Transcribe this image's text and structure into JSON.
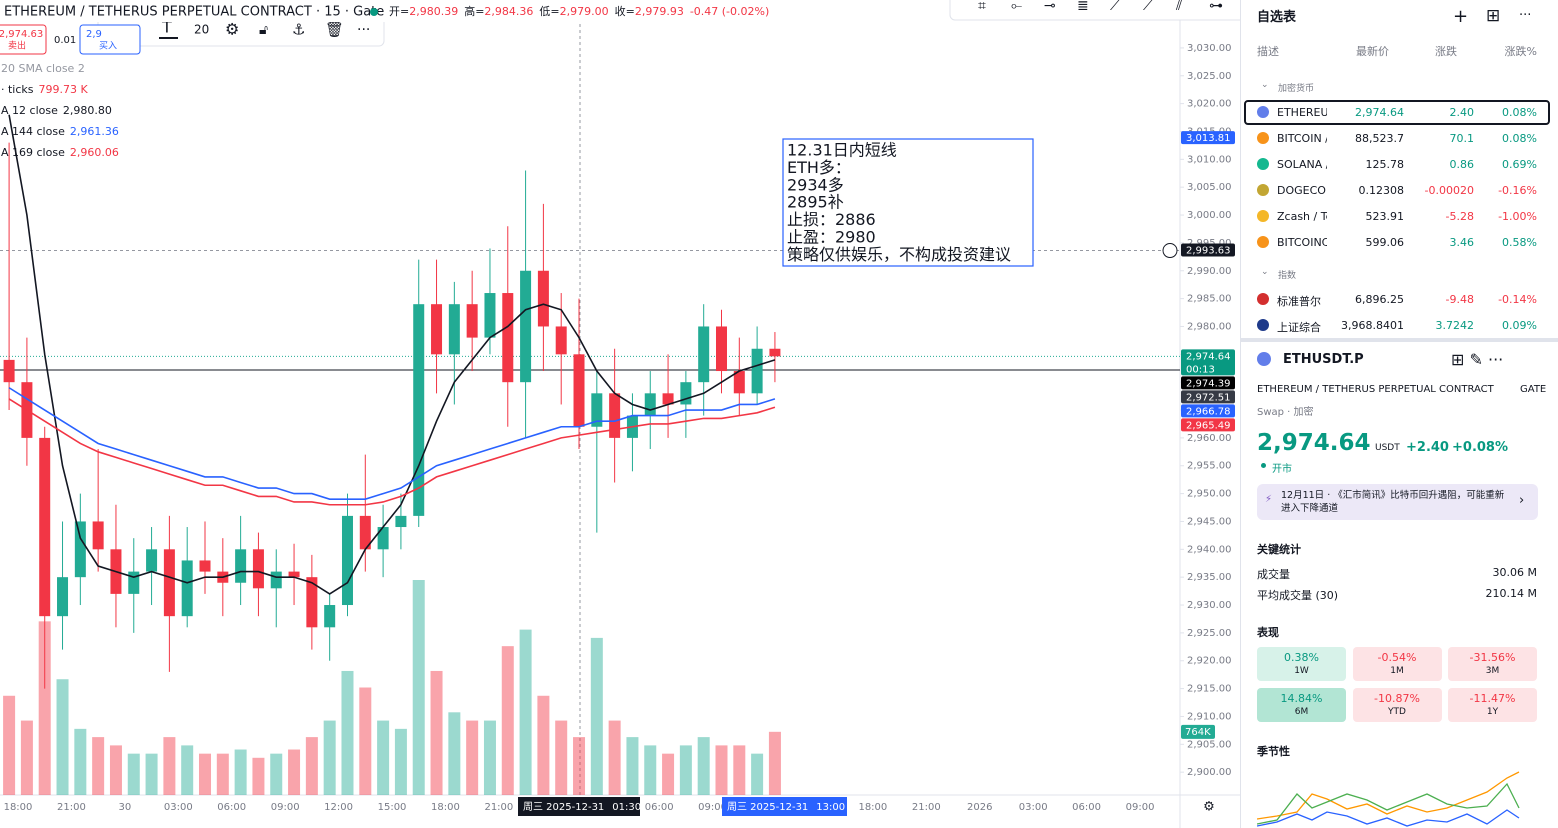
{
  "chart_data": {
    "type": "candlestick",
    "header": {
      "symbol": "ETHEREUM / TETHERUS PERPETUAL CONTRACT · 15 · Gate",
      "ohlc": [
        {
          "label": "开=",
          "value": "2,980.39"
        },
        {
          "label": "高=",
          "value": "2,984.36"
        },
        {
          "label": "低=",
          "value": "2,979.00"
        },
        {
          "label": "收=",
          "value": "2,979.93"
        }
      ],
      "change": "-0.47 (-0.02%)"
    },
    "trade": {
      "sell_price": "2,974.63",
      "sell": "卖出",
      "qty": "0.01",
      "buy_price": "2,9",
      "buy": "买入"
    },
    "toolbar_size": "20",
    "indicators": [
      {
        "name": "20 SMA close 2",
        "value": null
      },
      {
        "name": "· ticks",
        "value": "799.73 K",
        "color": "#f23645"
      },
      {
        "name": "A 12 close",
        "value": "2,980.80",
        "color": "#131722"
      },
      {
        "name": "A 144 close",
        "value": "2,961.36",
        "color": "#2962ff"
      },
      {
        "name": "A 169 close",
        "value": "2,960.06",
        "color": "#f23645"
      }
    ],
    "annotation": [
      "12.31日内短线",
      "ETH多：",
      "2934多",
      "2895补",
      "止损：2886",
      "止盈：2980",
      "策略仅供娱乐，不构成投资建议"
    ],
    "open": [
      2974,
      2970,
      2960,
      2928,
      2935,
      2945,
      2940,
      2932,
      2936,
      2940,
      2928,
      2938,
      2936,
      2934,
      2940,
      2933,
      2936,
      2935,
      2926,
      2930,
      2946,
      2940,
      2944,
      2946,
      2984,
      2975,
      2984,
      2978,
      2986,
      2970,
      2990,
      2980,
      2975,
      2962,
      2968,
      2960,
      2964,
      2968,
      2966,
      2970,
      2980,
      2972,
      2968,
      2976
    ],
    "high": [
      3013,
      2978,
      2962,
      2945,
      2950,
      2958,
      2948,
      2942,
      2944,
      2946,
      2944,
      2945,
      2942,
      2946,
      2943,
      2940,
      2941,
      2939,
      2932,
      2950,
      2957,
      2948,
      2950,
      2992,
      2992,
      2988,
      2990,
      2994,
      2998,
      3008,
      3002,
      2986,
      2985,
      2972,
      2976,
      2968,
      2972,
      2975,
      2972,
      2984,
      2983,
      2978,
      2980,
      2979
    ],
    "low": [
      2965,
      2955,
      2915,
      2922,
      2930,
      2936,
      2926,
      2925,
      2930,
      2918,
      2926,
      2932,
      2928,
      2930,
      2928,
      2926,
      2930,
      2922,
      2920,
      2928,
      2936,
      2935,
      2940,
      2944,
      2968,
      2966,
      2972,
      2975,
      2962,
      2960,
      2972,
      2966,
      2958,
      2943,
      2952,
      2954,
      2958,
      2960,
      2960,
      2964,
      2968,
      2964,
      2966,
      2970
    ],
    "close": [
      2970,
      2960,
      2928,
      2935,
      2945,
      2940,
      2932,
      2936,
      2940,
      2928,
      2938,
      2936,
      2934,
      2940,
      2933,
      2936,
      2935,
      2926,
      2930,
      2946,
      2940,
      2944,
      2946,
      2984,
      2975,
      2984,
      2978,
      2986,
      2970,
      2990,
      2980,
      2975,
      2962,
      2968,
      2960,
      2964,
      2968,
      2966,
      2970,
      2980,
      2972,
      2968,
      2976,
      2974.64
    ],
    "volume": [
      1200,
      900,
      2100,
      1400,
      800,
      700,
      600,
      500,
      500,
      700,
      600,
      500,
      500,
      550,
      450,
      500,
      550,
      700,
      900,
      1500,
      1300,
      900,
      800,
      2600,
      1500,
      1000,
      900,
      900,
      1800,
      2000,
      1200,
      900,
      700,
      1900,
      900,
      700,
      600,
      500,
      600,
      700,
      600,
      600,
      500,
      764
    ],
    "volume_label": "764K",
    "series": [
      {
        "name": "12 close",
        "color": "#131722",
        "values": [
          3018,
          3000,
          2975,
          2955,
          2942,
          2937,
          2936,
          2935,
          2936,
          2935,
          2934,
          2935,
          2935,
          2936,
          2936,
          2935,
          2935,
          2934,
          2932,
          2934,
          2940,
          2944,
          2948,
          2955,
          2963,
          2970,
          2974,
          2978,
          2980,
          2983,
          2984,
          2983,
          2978,
          2972,
          2968,
          2966,
          2965,
          2966,
          2967,
          2968,
          2970,
          2972,
          2973,
          2974
        ]
      },
      {
        "name": "144 close",
        "color": "#2962ff",
        "values": [
          2969,
          2967,
          2965,
          2963,
          2961,
          2959,
          2958,
          2957,
          2956,
          2955,
          2954,
          2953,
          2953,
          2952,
          2951,
          2951,
          2950,
          2950,
          2949,
          2949,
          2949,
          2950,
          2951,
          2953,
          2955,
          2956,
          2957,
          2958,
          2959,
          2960,
          2961,
          2962,
          2962,
          2963,
          2963,
          2964,
          2964,
          2964,
          2965,
          2965,
          2965,
          2966,
          2966,
          2967
        ]
      },
      {
        "name": "169 close",
        "color": "#f23645",
        "values": [
          2967,
          2965,
          2963,
          2961,
          2959,
          2957.5,
          2956.5,
          2955.5,
          2954.5,
          2953.5,
          2952.5,
          2951.5,
          2951.5,
          2950.5,
          2949.5,
          2949.5,
          2948.5,
          2948.5,
          2948,
          2948,
          2948,
          2948.5,
          2949.5,
          2951,
          2953,
          2954,
          2955,
          2956,
          2957,
          2958,
          2959,
          2960,
          2960.5,
          2961,
          2961.5,
          2962,
          2962.5,
          2962.5,
          2963,
          2963.5,
          2963.5,
          2964,
          2964.5,
          2965.5
        ]
      }
    ],
    "up_color": "#22ab94",
    "down_color": "#f23645",
    "ylim": [
      2895.9,
      3038.6
    ],
    "yticks": [
      {
        "value": 2900,
        "label": "2,900.00"
      },
      {
        "value": 2905,
        "label": "2,905.00"
      },
      {
        "value": 2910,
        "label": "2,910.00"
      },
      {
        "value": 2915,
        "label": "2,915.00"
      },
      {
        "value": 2920,
        "label": "2,920.00"
      },
      {
        "value": 2925,
        "label": "2,925.00"
      },
      {
        "value": 2930,
        "label": "2,930.00"
      },
      {
        "value": 2935,
        "label": "2,935.00"
      },
      {
        "value": 2940,
        "label": "2,940.00"
      },
      {
        "value": 2945,
        "label": "2,945.00"
      },
      {
        "value": 2950,
        "label": "2,950.00"
      },
      {
        "value": 2955,
        "label": "2,955.00"
      },
      {
        "value": 2960,
        "label": "2,960.00"
      },
      {
        "value": 2965,
        "label": "2,965.00"
      },
      {
        "value": 2970,
        "label": "2,970.00"
      },
      {
        "value": 2975,
        "label": "2,975.00"
      },
      {
        "value": 2980,
        "label": "2,980.00"
      },
      {
        "value": 2985,
        "label": "2,985.00"
      },
      {
        "value": 2990,
        "label": "2,990.00"
      },
      {
        "value": 2995,
        "label": "2,995.00"
      },
      {
        "value": 3000,
        "label": "3,000.00"
      },
      {
        "value": 3005,
        "label": "3,005.00"
      },
      {
        "value": 3010,
        "label": "3,010.00"
      },
      {
        "value": 3015,
        "label": "3,015.00"
      },
      {
        "value": 3020,
        "label": "3,020.00"
      },
      {
        "value": 3025,
        "label": "3,025.00"
      },
      {
        "value": 3030,
        "label": "3,030.00"
      }
    ],
    "grid": false,
    "price_labels": [
      {
        "value": 3013.81,
        "label": "3,013.81",
        "color": "#2962ff"
      },
      {
        "value": 2993.63,
        "label": "2,993.63",
        "color": "#131722"
      },
      {
        "value": 2974.64,
        "label": "2,974.64",
        "sub": "00:13",
        "color": "#089981"
      },
      {
        "value": 2974.39,
        "label": "2,974.39",
        "color": "#000000"
      },
      {
        "value": 2972.51,
        "label": "2,972.51",
        "color": "#363a45"
      },
      {
        "value": 2966.78,
        "label": "2,966.78",
        "color": "#2962ff"
      },
      {
        "value": 2965.49,
        "label": "2,965.49",
        "color": "#f23645"
      }
    ],
    "time_labels": [
      "18:00",
      "21:00",
      "30",
      "03:00",
      "06:00",
      "09:00",
      "12:00",
      "15:00",
      "18:00",
      "21:00",
      null,
      null,
      "06:00",
      "09:00",
      null,
      null,
      "18:00",
      "21:00",
      "2026",
      "03:00",
      "06:00",
      "09:00"
    ],
    "crosshair_time": {
      "date": "周三 2025-12-31",
      "time": "01:30"
    },
    "current_time": {
      "date": "周三 2025-12-31",
      "time": "13:00"
    }
  },
  "watchlist": {
    "title": "自选表",
    "columns": [
      "描述",
      "最新价",
      "涨跌",
      "涨跌%"
    ],
    "sections": [
      {
        "name": "加密货币",
        "rows": [
          {
            "name": "ETHEREUM",
            "last": "2,974.64",
            "change": "2.40",
            "percent": "0.08%",
            "direction": "up"
          },
          {
            "name": "BITCOIN /",
            "last": "88,523.7",
            "change": "70.1",
            "percent": "0.08%",
            "direction": "up"
          },
          {
            "name": "SOLANA /",
            "last": "125.78",
            "change": "0.86",
            "percent": "0.69%",
            "direction": "up"
          },
          {
            "name": "DOGECOIN",
            "last": "0.12308",
            "change": "-0.00020",
            "percent": "-0.16%",
            "direction": "down"
          },
          {
            "name": "Zcash / Te",
            "last": "523.91",
            "change": "-5.28",
            "percent": "-1.00%",
            "direction": "down"
          },
          {
            "name": "BITCOINC",
            "last": "599.06",
            "change": "3.46",
            "percent": "0.58%",
            "direction": "up"
          }
        ]
      },
      {
        "name": "指数",
        "rows": [
          {
            "name": "标准普尔",
            "last": "6,896.25",
            "change": "-9.48",
            "percent": "-0.14%",
            "direction": "down"
          },
          {
            "name": "上证综合",
            "last": "3,968.8401",
            "change": "3.7242",
            "percent": "0.09%",
            "direction": "up"
          }
        ]
      }
    ]
  },
  "details": {
    "symbol": "ETHUSDT.P",
    "description": "ETHEREUM / TETHERUS PERPETUAL CONTRACT",
    "exchange": "GATE",
    "category": "Swap · 加密",
    "price": "2,974.64",
    "currency": "USDT",
    "change": "+2.40",
    "change_percent": "+0.08%",
    "status": "开市",
    "news": "12月11日 · 《汇市简讯》比特币回升遇阻，可能重新进入下降通道",
    "stats_title": "关键统计",
    "stats": [
      {
        "label": "成交量",
        "value": "30.06 M"
      },
      {
        "label": "平均成交量 (30)",
        "value": "210.14 M"
      }
    ],
    "performance_title": "表现",
    "performance": [
      {
        "value": "0.38%",
        "period": "1W",
        "direction": "up"
      },
      {
        "value": "-0.54%",
        "period": "1M",
        "direction": "down"
      },
      {
        "value": "-31.56%",
        "period": "3M",
        "direction": "down"
      },
      {
        "value": "14.84%",
        "period": "6M",
        "direction": "up"
      },
      {
        "value": "-10.87%",
        "period": "YTD",
        "direction": "down"
      },
      {
        "value": "-11.47%",
        "period": "1Y",
        "direction": "down"
      }
    ],
    "seasonality_title": "季节性"
  }
}
